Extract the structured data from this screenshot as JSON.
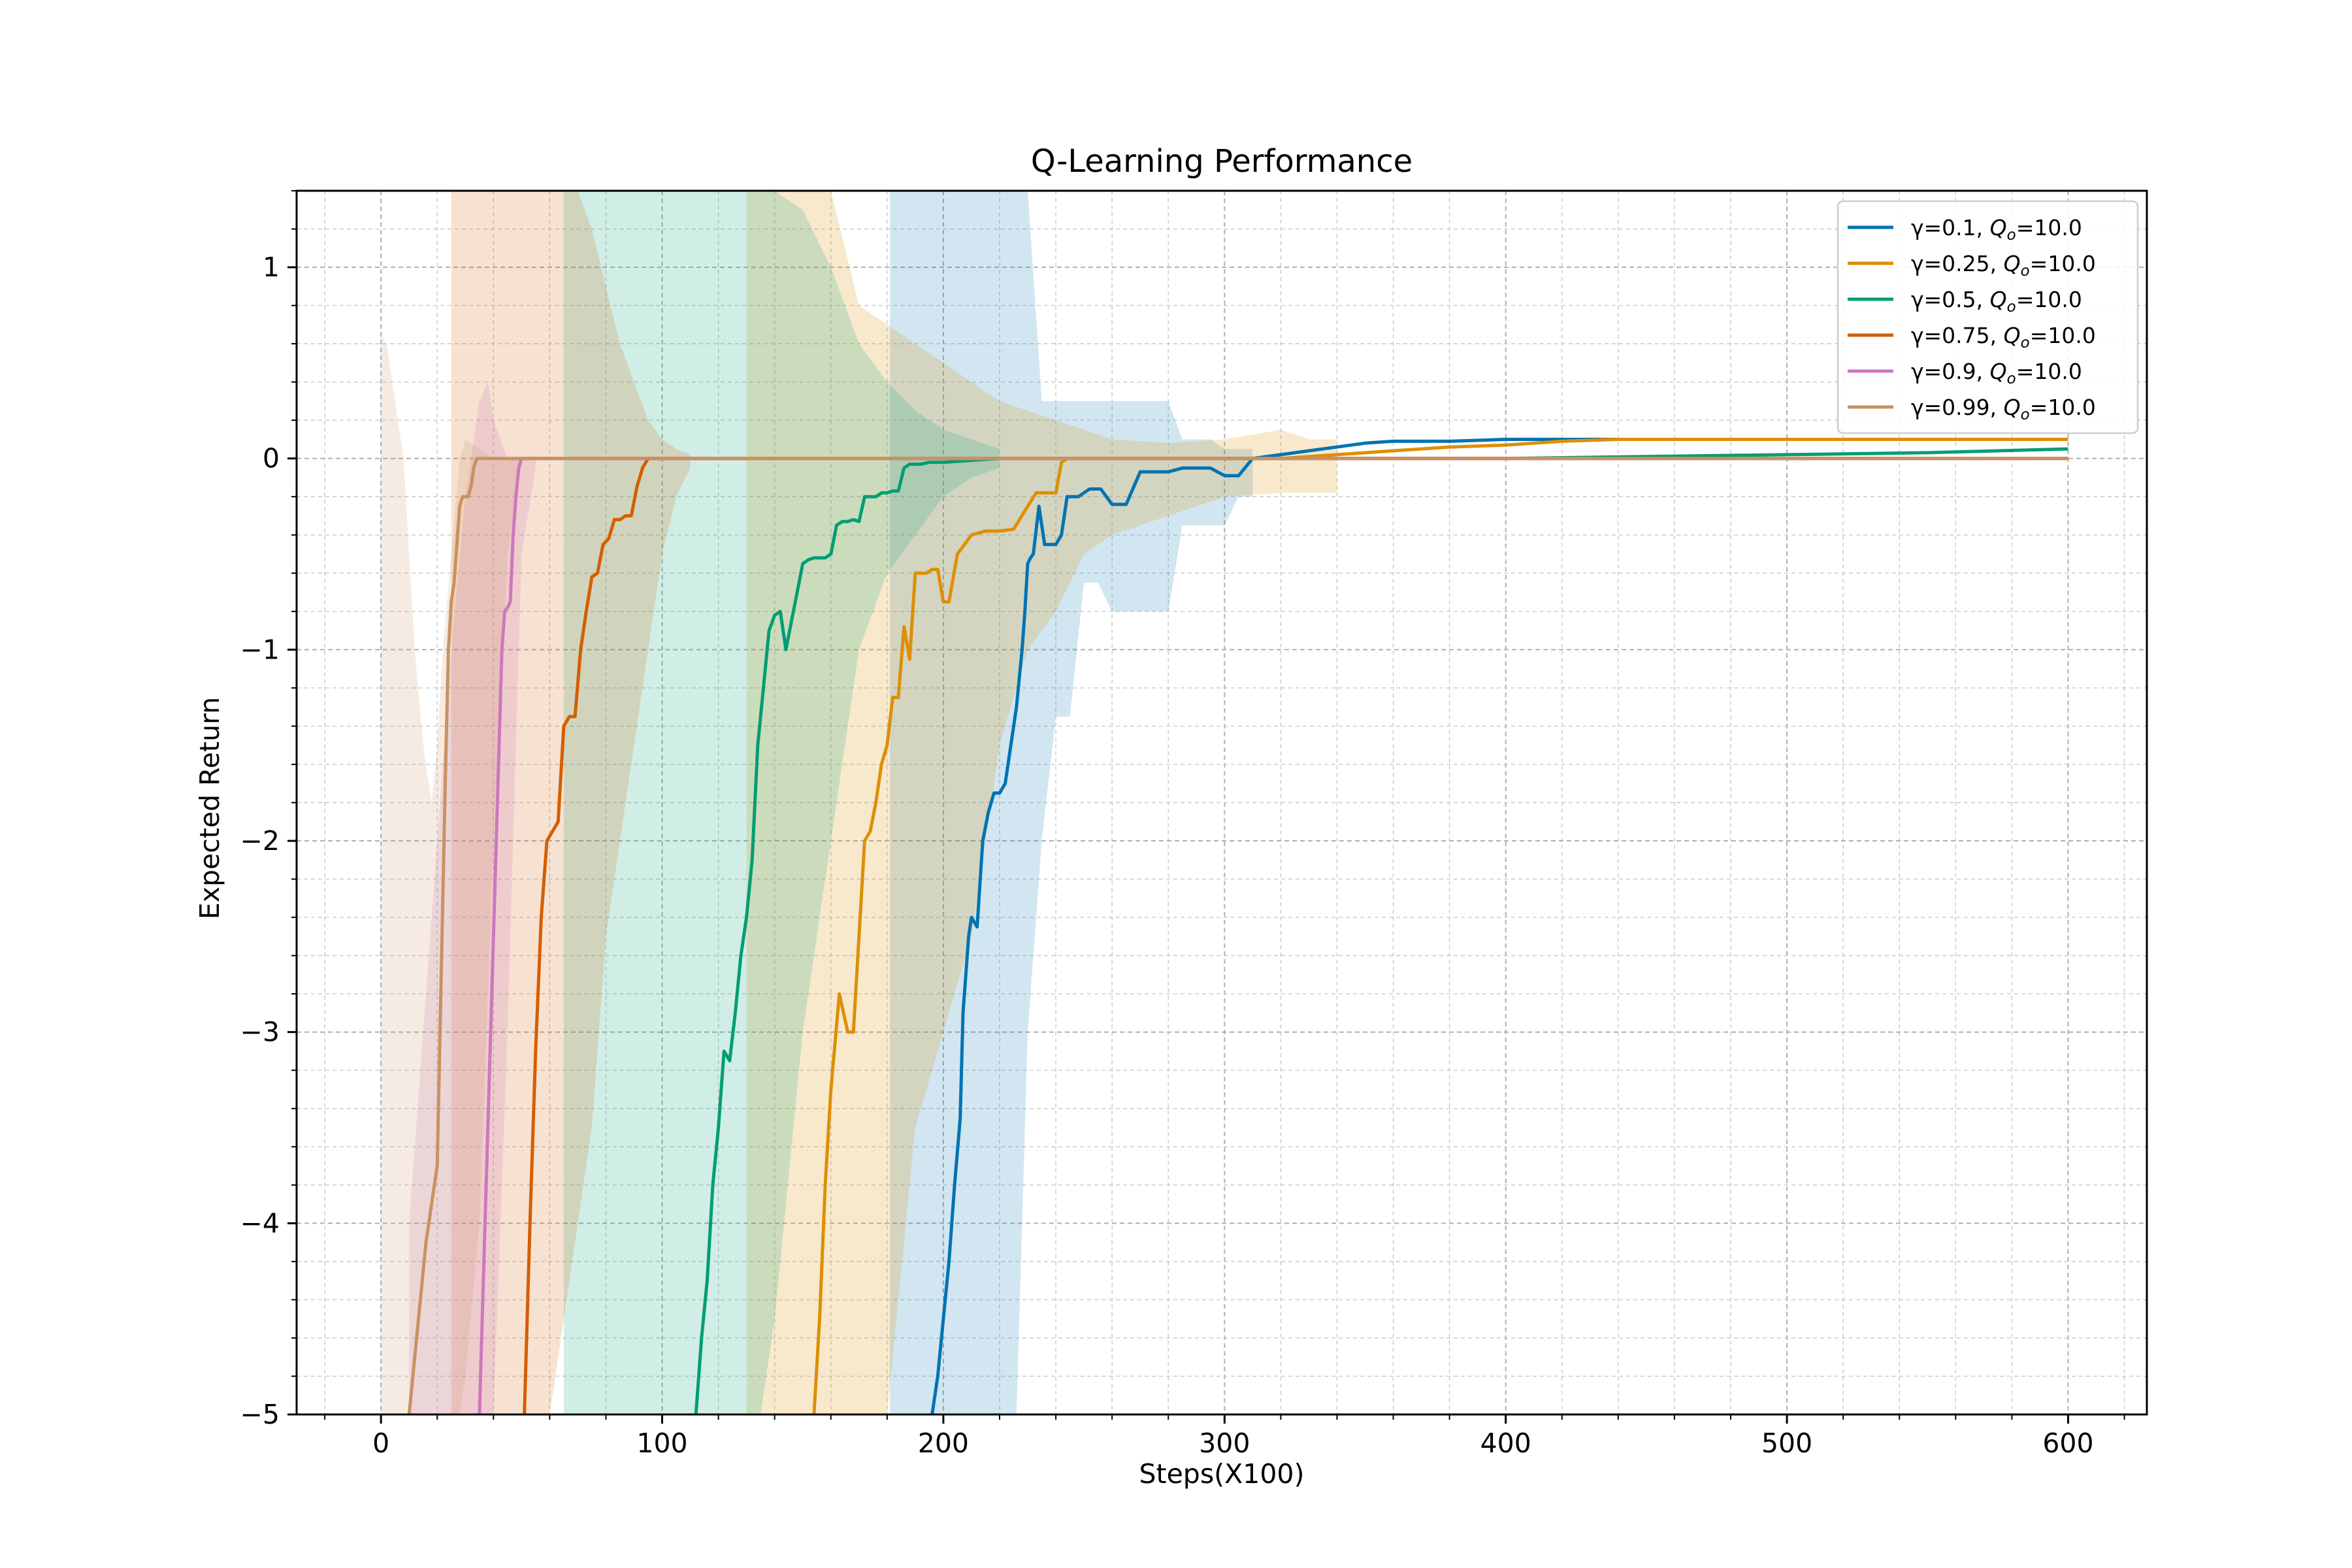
{
  "chart_data": {
    "type": "line",
    "title": "Q-Learning Performance",
    "xlabel": "Steps(X100)",
    "ylabel": "Expected Return",
    "xlim": [
      -30,
      628
    ],
    "ylim": [
      -5,
      1.4
    ],
    "x_ticks": [
      0,
      100,
      200,
      300,
      400,
      500,
      600
    ],
    "y_ticks": [
      -5,
      -4,
      -3,
      -2,
      -1,
      0,
      1
    ],
    "x_tick_labels": [
      "0",
      "100",
      "200",
      "300",
      "400",
      "500",
      "600"
    ],
    "y_tick_labels": [
      "−5",
      "−4",
      "−3",
      "−2",
      "−1",
      "0",
      "1"
    ],
    "grid": true,
    "legend_position": "top-right",
    "series": [
      {
        "name": "γ=0.1, Qₒ=10.0",
        "legend_main": "γ=0.1, ",
        "legend_q": "Q",
        "legend_sub": "o",
        "legend_value": "=10.0",
        "color": "#0173b2",
        "x": [
          196,
          198,
          200,
          202,
          204,
          206,
          207,
          209,
          210,
          212,
          214,
          216,
          218,
          220,
          222,
          224,
          226,
          228,
          229,
          230,
          231,
          232,
          234,
          236,
          238,
          240,
          242,
          244,
          248,
          252,
          256,
          260,
          265,
          270,
          275,
          280,
          285,
          290,
          295,
          300,
          305,
          310,
          320,
          330,
          340,
          350,
          360,
          380,
          400,
          450,
          500,
          550,
          600
        ],
        "y": [
          -5,
          -4.8,
          -4.5,
          -4.2,
          -3.8,
          -3.45,
          -2.9,
          -2.5,
          -2.4,
          -2.45,
          -2.0,
          -1.85,
          -1.75,
          -1.75,
          -1.7,
          -1.5,
          -1.3,
          -1.0,
          -0.8,
          -0.55,
          -0.52,
          -0.5,
          -0.25,
          -0.45,
          -0.45,
          -0.45,
          -0.4,
          -0.2,
          -0.2,
          -0.16,
          -0.16,
          -0.24,
          -0.24,
          -0.07,
          -0.07,
          -0.07,
          -0.05,
          -0.05,
          -0.05,
          -0.09,
          -0.09,
          0.0,
          0.02,
          0.04,
          0.06,
          0.08,
          0.09,
          0.09,
          0.1,
          0.1,
          0.1,
          0.1,
          0.1
        ]
      },
      {
        "name": "γ=0.25, Qₒ=10.0",
        "legend_main": "γ=0.25, ",
        "legend_q": "Q",
        "legend_sub": "o",
        "legend_value": "=10.0",
        "color": "#de8f05",
        "x": [
          154,
          156,
          158,
          160,
          163,
          166,
          168,
          170,
          172,
          174,
          176,
          178,
          180,
          182,
          184,
          186,
          188,
          190,
          192,
          194,
          196,
          198,
          200,
          202,
          205,
          210,
          215,
          220,
          225,
          230,
          233,
          236,
          240,
          242,
          244,
          250,
          260,
          280,
          300,
          320,
          340,
          360,
          380,
          400,
          420,
          440,
          460,
          500,
          550,
          600
        ],
        "y": [
          -5,
          -4.5,
          -3.8,
          -3.3,
          -2.8,
          -3.0,
          -3.0,
          -2.5,
          -2.0,
          -1.95,
          -1.8,
          -1.6,
          -1.5,
          -1.25,
          -1.25,
          -0.88,
          -1.05,
          -0.6,
          -0.6,
          -0.6,
          -0.58,
          -0.58,
          -0.75,
          -0.75,
          -0.5,
          -0.4,
          -0.38,
          -0.38,
          -0.37,
          -0.25,
          -0.18,
          -0.18,
          -0.18,
          -0.02,
          0.0,
          0.0,
          0.0,
          0.0,
          0.0,
          0.0,
          0.02,
          0.04,
          0.06,
          0.07,
          0.09,
          0.1,
          0.1,
          0.1,
          0.1,
          0.1
        ]
      },
      {
        "name": "γ=0.5, Qₒ=10.0",
        "legend_main": "γ=0.5, ",
        "legend_q": "Q",
        "legend_sub": "o",
        "legend_value": "=10.0",
        "color": "#029e73",
        "x": [
          112,
          114,
          116,
          118,
          120,
          122,
          124,
          126,
          128,
          130,
          132,
          134,
          136,
          138,
          140,
          142,
          144,
          146,
          148,
          150,
          152,
          154,
          156,
          158,
          160,
          162,
          164,
          166,
          168,
          170,
          172,
          174,
          176,
          178,
          180,
          182,
          184,
          186,
          188,
          190,
          192,
          195,
          200,
          210,
          220,
          250,
          300,
          350,
          400,
          450,
          500,
          550,
          600
        ],
        "y": [
          -5,
          -4.6,
          -4.3,
          -3.8,
          -3.5,
          -3.1,
          -3.15,
          -2.9,
          -2.6,
          -2.4,
          -2.1,
          -1.5,
          -1.2,
          -0.9,
          -0.82,
          -0.8,
          -1.0,
          -0.85,
          -0.7,
          -0.55,
          -0.53,
          -0.52,
          -0.52,
          -0.52,
          -0.5,
          -0.35,
          -0.33,
          -0.33,
          -0.32,
          -0.33,
          -0.2,
          -0.2,
          -0.2,
          -0.18,
          -0.18,
          -0.17,
          -0.17,
          -0.05,
          -0.03,
          -0.03,
          -0.03,
          -0.02,
          -0.02,
          -0.01,
          0.0,
          0.0,
          0.0,
          0.0,
          0.0,
          0.01,
          0.02,
          0.03,
          0.05
        ]
      },
      {
        "name": "γ=0.75, Qₒ=10.0",
        "legend_main": "γ=0.75, ",
        "legend_q": "Q",
        "legend_sub": "o",
        "legend_value": "=10.0",
        "color": "#d55e00",
        "x": [
          51,
          53,
          55,
          57,
          59,
          61,
          63,
          65,
          67,
          69,
          71,
          73,
          75,
          77,
          79,
          81,
          83,
          85,
          87,
          89,
          91,
          93,
          95,
          100,
          110,
          120,
          150,
          200,
          300,
          400,
          500,
          600
        ],
        "y": [
          -5,
          -4.0,
          -3.1,
          -2.4,
          -2.0,
          -1.95,
          -1.9,
          -1.4,
          -1.35,
          -1.35,
          -1.0,
          -0.8,
          -0.62,
          -0.6,
          -0.45,
          -0.42,
          -0.32,
          -0.32,
          -0.3,
          -0.3,
          -0.15,
          -0.05,
          0.0,
          0.0,
          0.0,
          0.0,
          0.0,
          0.0,
          0.0,
          0.0,
          0.0,
          0.0
        ]
      },
      {
        "name": "γ=0.9, Qₒ=10.0",
        "legend_main": "γ=0.9, ",
        "legend_q": "Q",
        "legend_sub": "o",
        "legend_value": "=10.0",
        "color": "#cc78bc",
        "x": [
          35,
          36,
          37,
          38,
          39,
          40,
          41,
          42,
          43,
          44,
          45,
          46,
          47,
          48,
          49,
          50,
          55,
          60,
          80,
          100,
          150,
          200,
          250,
          300,
          400,
          500,
          600
        ],
        "y": [
          -5,
          -4.5,
          -4.0,
          -3.5,
          -3.0,
          -2.5,
          -2.0,
          -1.5,
          -1.0,
          -0.8,
          -0.78,
          -0.75,
          -0.4,
          -0.2,
          -0.05,
          0.0,
          0.0,
          0.0,
          0.0,
          0.0,
          0.0,
          0.0,
          0.0,
          0.0,
          0.0,
          0.0,
          0.0
        ]
      },
      {
        "name": "γ=0.99, Qₒ=10.0",
        "legend_main": "γ=0.99, ",
        "legend_q": "Q",
        "legend_sub": "o",
        "legend_value": "=10.0",
        "color": "#ca9161",
        "x": [
          10,
          12,
          14,
          16,
          18,
          20,
          21,
          22,
          23,
          24,
          25,
          26,
          27,
          28,
          29,
          30,
          31,
          32,
          33,
          34,
          35,
          40,
          50,
          100,
          150,
          200,
          250,
          300,
          350,
          400,
          500,
          600
        ],
        "y": [
          -5,
          -4.7,
          -4.4,
          -4.1,
          -3.9,
          -3.7,
          -3.0,
          -2.3,
          -1.6,
          -1.0,
          -0.75,
          -0.65,
          -0.45,
          -0.25,
          -0.2,
          -0.2,
          -0.2,
          -0.15,
          -0.05,
          0.0,
          0.0,
          0.0,
          0.0,
          0.0,
          0.0,
          0.0,
          0.0,
          0.0,
          0.0,
          0.0,
          0.0,
          0.0
        ]
      }
    ],
    "bands": [
      {
        "series": "γ=0.1, Qₒ=10.0",
        "color": "#0173b2",
        "opacity": 0.18,
        "x": [
          181,
          185,
          190,
          200,
          210,
          220,
          226,
          230,
          235,
          240,
          245,
          250,
          255,
          260,
          265,
          270,
          280,
          285,
          290,
          295,
          300,
          305,
          310
        ],
        "upper": [
          1.4,
          1.4,
          1.4,
          1.4,
          1.4,
          1.4,
          1.4,
          1.4,
          0.3,
          0.3,
          0.3,
          0.3,
          0.3,
          0.3,
          0.3,
          0.3,
          0.3,
          0.1,
          0.1,
          0.1,
          0.05,
          0.05,
          0.05
        ],
        "lower": [
          -5,
          -5,
          -5,
          -5,
          -5,
          -5,
          -5,
          -3.0,
          -2.0,
          -1.35,
          -1.35,
          -0.65,
          -0.65,
          -0.8,
          -0.8,
          -0.8,
          -0.8,
          -0.35,
          -0.35,
          -0.35,
          -0.35,
          -0.2,
          -0.2
        ]
      },
      {
        "series": "γ=0.25, Qₒ=10.0",
        "color": "#de8f05",
        "opacity": 0.2,
        "x": [
          130,
          140,
          150,
          155,
          160,
          170,
          180,
          190,
          200,
          210,
          220,
          230,
          240,
          250,
          260,
          280,
          300,
          320,
          330,
          340
        ],
        "upper": [
          1.4,
          1.4,
          1.4,
          1.4,
          1.4,
          0.8,
          0.7,
          0.6,
          0.5,
          0.4,
          0.3,
          0.25,
          0.2,
          0.15,
          0.1,
          0.08,
          0.1,
          0.15,
          0.1,
          0.1
        ],
        "lower": [
          -5,
          -5,
          -5,
          -5,
          -5,
          -5,
          -5,
          -3.5,
          -3.0,
          -2.5,
          -1.5,
          -1.0,
          -0.8,
          -0.5,
          -0.4,
          -0.3,
          -0.2,
          -0.18,
          -0.18,
          -0.18
        ]
      },
      {
        "series": "γ=0.5, Qₒ=10.0",
        "color": "#029e73",
        "opacity": 0.18,
        "x": [
          65,
          70,
          80,
          90,
          100,
          110,
          120,
          130,
          135,
          140,
          150,
          160,
          170,
          180,
          190,
          200,
          210,
          220
        ],
        "upper": [
          1.4,
          1.4,
          1.4,
          1.4,
          1.4,
          1.4,
          1.4,
          1.4,
          1.4,
          1.4,
          1.3,
          1.0,
          0.6,
          0.4,
          0.25,
          0.15,
          0.1,
          0.05
        ],
        "lower": [
          -5,
          -5,
          -5,
          -5,
          -5,
          -5,
          -5,
          -5,
          -5,
          -4.5,
          -3.0,
          -2.0,
          -1.0,
          -0.6,
          -0.4,
          -0.2,
          -0.1,
          -0.05
        ]
      },
      {
        "series": "γ=0.75, Qₒ=10.0",
        "color": "#d55e00",
        "opacity": 0.18,
        "x": [
          25,
          30,
          40,
          50,
          55,
          60,
          65,
          70,
          75,
          80,
          85,
          90,
          95,
          100,
          105,
          110
        ],
        "upper": [
          1.4,
          1.4,
          1.4,
          1.4,
          1.4,
          1.4,
          1.4,
          1.4,
          1.2,
          0.9,
          0.6,
          0.4,
          0.2,
          0.1,
          0.05,
          0.02
        ],
        "lower": [
          -5,
          -5,
          -5,
          -5,
          -5,
          -5,
          -4.5,
          -4.0,
          -3.5,
          -2.5,
          -2.0,
          -1.5,
          -1.0,
          -0.5,
          -0.2,
          -0.05
        ]
      },
      {
        "series": "γ=0.9, Qₒ=10.0",
        "color": "#cc78bc",
        "opacity": 0.2,
        "x": [
          10,
          15,
          20,
          25,
          30,
          35,
          38,
          40,
          45,
          50,
          55
        ],
        "upper": [
          -4.0,
          -3.0,
          -2.0,
          -1.0,
          -0.2,
          0.3,
          0.4,
          0.2,
          0.0,
          0.0,
          0.0
        ],
        "lower": [
          -5,
          -5,
          -5,
          -5,
          -5,
          -5,
          -5,
          -5,
          -3.0,
          -0.5,
          -0.05
        ]
      },
      {
        "series": "γ=0.99, Qₒ=10.0",
        "color": "#ca9161",
        "opacity": 0.18,
        "x": [
          0,
          2,
          5,
          8,
          10,
          12,
          15,
          18,
          20,
          22,
          25,
          28,
          30,
          35,
          40,
          45,
          50
        ],
        "upper": [
          0.65,
          0.6,
          0.3,
          0.0,
          -0.5,
          -1.0,
          -1.5,
          -1.8,
          -1.5,
          -1.0,
          -0.5,
          0.0,
          0.1,
          0.05,
          0.0,
          0.0,
          0.0
        ],
        "lower": [
          -5,
          -5,
          -5,
          -5,
          -5,
          -5,
          -5,
          -5,
          -5,
          -5,
          -5,
          -5,
          -4.8,
          -4.0,
          -2.0,
          -0.5,
          -0.02
        ]
      }
    ]
  }
}
